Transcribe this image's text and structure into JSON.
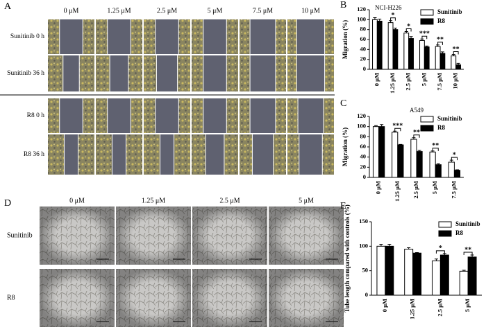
{
  "panel_a": {
    "label": "A",
    "columns": [
      "0 μM",
      "1.25 μM",
      "2.5 μM",
      "5 μM",
      "7.5 μM",
      "10 μM"
    ],
    "rows": [
      "Sunitinib 0 h",
      "Sunitinib 36 h",
      "R8 0 h",
      "R8 36 h"
    ]
  },
  "panel_d": {
    "label": "D",
    "columns": [
      "0 μM",
      "1.25 μM",
      "2.5 μM",
      "5 μM"
    ],
    "rows": [
      "Sunitinib",
      "R8"
    ]
  },
  "chart_data": [
    {
      "type": "bar",
      "panel": "B",
      "title": "NCI-H226",
      "ylabel": "Migration (%)",
      "categories": [
        "0 μM",
        "1.25 μM",
        "2.5 μM",
        "5 μM",
        "7.5 μM",
        "10 μM"
      ],
      "series": [
        {
          "name": "Sunitinib",
          "color": "#ffffff",
          "values": [
            100,
            94,
            73,
            58,
            46,
            27
          ],
          "errors": [
            4,
            4,
            3,
            3,
            3,
            3
          ]
        },
        {
          "name": "R8",
          "color": "#000000",
          "values": [
            97,
            80,
            62,
            45,
            32,
            9
          ],
          "errors": [
            4,
            3,
            4,
            2,
            3,
            3
          ]
        }
      ],
      "significance": [
        null,
        "*",
        "*",
        "***",
        "**",
        "**"
      ],
      "ylim": [
        0,
        120
      ],
      "yticks": [
        0,
        20,
        40,
        60,
        80,
        100,
        120
      ],
      "legend": "upper right"
    },
    {
      "type": "bar",
      "panel": "C",
      "title": "A549",
      "ylabel": "Migration (%)",
      "categories": [
        "0 μM",
        "1.25 μM",
        "2.5 μM",
        "5 μM",
        "7.5 μM"
      ],
      "series": [
        {
          "name": "Sunitinib",
          "color": "#ffffff",
          "values": [
            100,
            89,
            75,
            50,
            30
          ],
          "errors": [
            2,
            2,
            3,
            2,
            4
          ]
        },
        {
          "name": "R8",
          "color": "#000000",
          "values": [
            100,
            64,
            51,
            25,
            14
          ],
          "errors": [
            4,
            1,
            2,
            2,
            1
          ]
        }
      ],
      "significance": [
        null,
        "***",
        "**",
        "**",
        "*"
      ],
      "ylim": [
        0,
        120
      ],
      "yticks": [
        0,
        20,
        40,
        60,
        80,
        100,
        120
      ],
      "legend": "upper right"
    },
    {
      "type": "bar",
      "panel": "E",
      "ylabel": "Tube length compared with controls (%)",
      "categories": [
        "0 μM",
        "1.25 μM",
        "2.5 μM",
        "5 μM"
      ],
      "series": [
        {
          "name": "Sunitinib",
          "color": "#ffffff",
          "values": [
            100,
            94,
            70,
            49
          ],
          "errors": [
            4,
            3,
            4,
            2
          ]
        },
        {
          "name": "R8",
          "color": "#000000",
          "values": [
            100,
            86,
            82,
            78
          ],
          "errors": [
            4,
            1,
            3,
            4
          ]
        }
      ],
      "significance": [
        null,
        null,
        "*",
        "**"
      ],
      "ylim": [
        0,
        150
      ],
      "yticks": [
        0,
        50,
        100,
        150
      ],
      "legend": "upper right"
    }
  ]
}
